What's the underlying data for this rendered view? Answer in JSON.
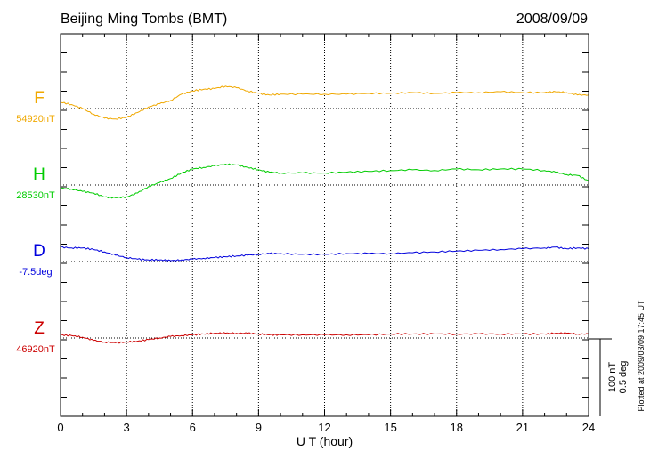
{
  "chart_data": {
    "type": "line",
    "title": "Beijing Ming Tombs (BMT)",
    "date": "2008/09/09",
    "xlabel": "U T (hour)",
    "xlim": [
      0,
      24
    ],
    "xticks": [
      "0",
      "3",
      "6",
      "9",
      "12",
      "15",
      "18",
      "21",
      "24"
    ],
    "grid": true,
    "scale_bar": {
      "nT": "100 nT",
      "deg": "0.5 deg"
    },
    "footnote": "Plotted at 2009/03/09 17:45 UT",
    "series": [
      {
        "name": "F",
        "baseline_label": "54920nT",
        "color": "#f0a800",
        "x": [
          0,
          0.5,
          1,
          1.5,
          2,
          2.5,
          3,
          3.5,
          4,
          4.5,
          5,
          5.5,
          6,
          6.5,
          7,
          7.5,
          8,
          8.5,
          9,
          9.5,
          10,
          11,
          12,
          13,
          14,
          15,
          16,
          17,
          18,
          19,
          20,
          21,
          22,
          22.5,
          23,
          23.5,
          24
        ],
        "y": [
          8,
          5,
          0,
          -7,
          -12,
          -13,
          -11,
          -5,
          2,
          6,
          10,
          18,
          22,
          24,
          25,
          28,
          26,
          22,
          19,
          17,
          18,
          18,
          18,
          18,
          19,
          19,
          20,
          19,
          20,
          20,
          21,
          20,
          20,
          21,
          20,
          17,
          17
        ]
      },
      {
        "name": "H",
        "baseline_label": "28530nT",
        "color": "#00cc00",
        "x": [
          0,
          0.5,
          1,
          1.5,
          2,
          2.5,
          3,
          3.5,
          4,
          4.5,
          5,
          5.5,
          6,
          6.5,
          7,
          7.5,
          8,
          8.5,
          9,
          9.5,
          10,
          11,
          12,
          13,
          14,
          15,
          16,
          17,
          18,
          19,
          20,
          21,
          22,
          22.5,
          23,
          23.5,
          24
        ],
        "y": [
          -4,
          -5,
          -8,
          -10,
          -15,
          -16,
          -15,
          -10,
          -2,
          3,
          8,
          15,
          20,
          22,
          24,
          26,
          25,
          22,
          19,
          16,
          15,
          15,
          15,
          16,
          17,
          18,
          19,
          18,
          20,
          19,
          20,
          20,
          18,
          16,
          13,
          12,
          5
        ]
      },
      {
        "name": "D",
        "baseline_label": "-7.5deg",
        "color": "#0000dd",
        "x": [
          0,
          0.5,
          1,
          1.5,
          2,
          2.5,
          3,
          3.5,
          4,
          4.5,
          5,
          5.5,
          6,
          6.5,
          7,
          7.5,
          8,
          8.5,
          9,
          9.5,
          10,
          11,
          12,
          13,
          14,
          15,
          16,
          17,
          18,
          19,
          20,
          21,
          22,
          22.5,
          23,
          23.5,
          24
        ],
        "y": [
          18,
          17,
          17,
          15,
          12,
          8,
          5,
          3,
          2,
          2,
          1,
          2,
          3,
          4,
          5,
          6,
          7,
          8,
          9,
          10,
          10,
          9,
          9,
          10,
          10,
          10,
          11,
          12,
          13,
          14,
          15,
          16,
          17,
          18,
          16,
          17,
          16
        ]
      },
      {
        "name": "Z",
        "baseline_label": "46920nT",
        "color": "#cc0000",
        "x": [
          0,
          0.5,
          1,
          1.5,
          2,
          2.5,
          3,
          3.5,
          4,
          4.5,
          5,
          5.5,
          6,
          6.5,
          7,
          7.5,
          8,
          8.5,
          9,
          9.5,
          10,
          11,
          12,
          13,
          14,
          15,
          16,
          17,
          18,
          19,
          20,
          21,
          22,
          22.5,
          23,
          23.5,
          24
        ],
        "y": [
          4,
          3,
          1,
          -3,
          -5,
          -6,
          -5,
          -4,
          -2,
          0,
          2,
          3,
          4,
          5,
          6,
          6,
          6,
          6,
          5,
          4,
          4,
          4,
          4,
          4,
          4,
          5,
          5,
          5,
          5,
          5,
          5,
          5,
          5,
          6,
          6,
          5,
          5
        ]
      }
    ]
  }
}
